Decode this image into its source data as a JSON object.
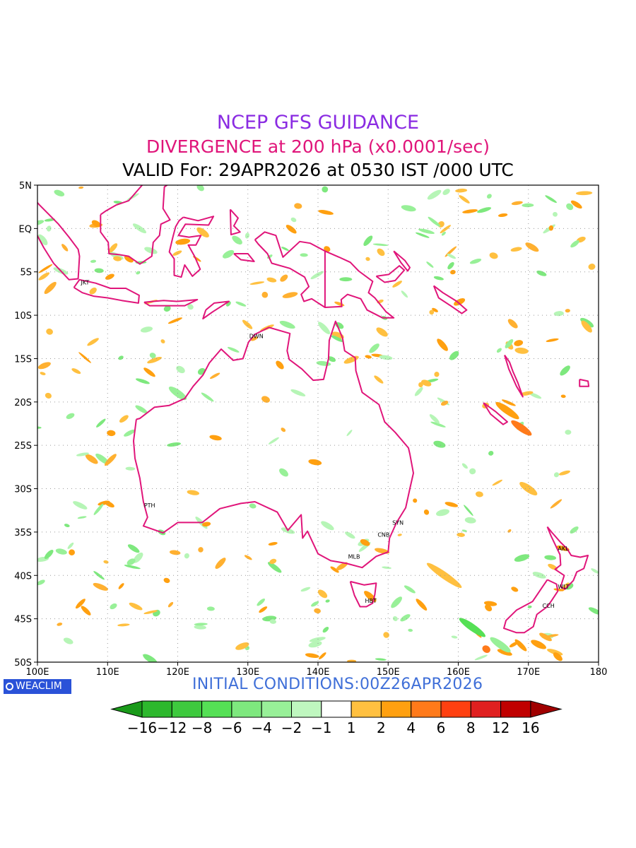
{
  "titles": {
    "line1": "NCEP GFS GUIDANCE",
    "line2": "DIVERGENCE at 200 hPa (x0.0001/sec)",
    "line3": "VALID For: 29APR2026 at 0530 IST /000 UTC"
  },
  "footer": {
    "logo_text": "WEACLIM",
    "initial_conditions": "INITIAL CONDITIONS:00Z26APR2026"
  },
  "map": {
    "lon_range": [
      100,
      180
    ],
    "lat_range": [
      -50,
      5
    ],
    "coast_color": "#e0157a",
    "grid": true,
    "lon_ticks": [
      {
        "value": 100,
        "label": "100E"
      },
      {
        "value": 110,
        "label": "110E"
      },
      {
        "value": 120,
        "label": "120E"
      },
      {
        "value": 130,
        "label": "130E"
      },
      {
        "value": 140,
        "label": "140E"
      },
      {
        "value": 150,
        "label": "150E"
      },
      {
        "value": 160,
        "label": "160E"
      },
      {
        "value": 170,
        "label": "170E"
      },
      {
        "value": 180,
        "label": "180"
      }
    ],
    "lat_ticks": [
      {
        "value": 5,
        "label": "5N"
      },
      {
        "value": 0,
        "label": "EQ"
      },
      {
        "value": -5,
        "label": "5S"
      },
      {
        "value": -10,
        "label": "10S"
      },
      {
        "value": -15,
        "label": "15S"
      },
      {
        "value": -20,
        "label": "20S"
      },
      {
        "value": -25,
        "label": "25S"
      },
      {
        "value": -30,
        "label": "30S"
      },
      {
        "value": -35,
        "label": "35S"
      },
      {
        "value": -40,
        "label": "40S"
      },
      {
        "value": -45,
        "label": "45S"
      },
      {
        "value": -50,
        "label": "50S"
      }
    ],
    "cities": [
      {
        "code": "JKT",
        "lon": 106.8,
        "lat": -6.2
      },
      {
        "code": "DWN",
        "lon": 130.8,
        "lat": -12.4
      },
      {
        "code": "PTH",
        "lon": 115.8,
        "lat": -31.9
      },
      {
        "code": "SYN",
        "lon": 151.2,
        "lat": -33.9
      },
      {
        "code": "CNB",
        "lon": 149.1,
        "lat": -35.3
      },
      {
        "code": "MLB",
        "lon": 144.9,
        "lat": -37.8
      },
      {
        "code": "HBT",
        "lon": 147.3,
        "lat": -42.9
      },
      {
        "code": "AKL",
        "lon": 174.8,
        "lat": -36.9
      },
      {
        "code": "WLT",
        "lon": 174.8,
        "lat": -41.3
      },
      {
        "code": "CCH",
        "lon": 172.6,
        "lat": -43.5
      }
    ]
  },
  "colorbar": {
    "labels": [
      "-16",
      "-12",
      "-8",
      "-6",
      "-4",
      "-2",
      "-1",
      "1",
      "2",
      "4",
      "6",
      "8",
      "12",
      "16"
    ],
    "colors": [
      "#1a9a1a",
      "#2db82d",
      "#3ec93e",
      "#55e055",
      "#7ee87e",
      "#98f098",
      "#bff7bf",
      "#ffffff",
      "#ffc040",
      "#ffa010",
      "#ff7a1a",
      "#ff4010",
      "#e02020",
      "#c00000",
      "#a00000"
    ]
  }
}
